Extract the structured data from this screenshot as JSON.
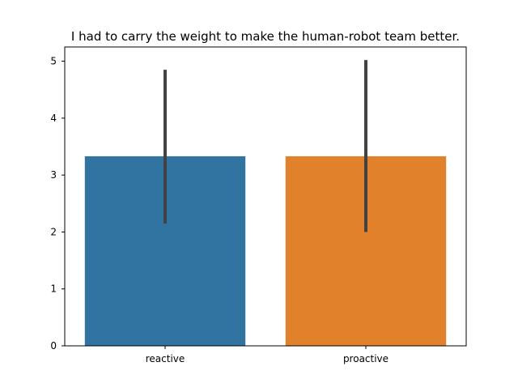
{
  "chart_data": {
    "type": "bar",
    "title": "I had to carry the weight to make the human-robot team better.",
    "xlabel": "",
    "ylabel": "",
    "categories": [
      "reactive",
      "proactive"
    ],
    "values": [
      3.33,
      3.33
    ],
    "error_bars": [
      {
        "low": 2.15,
        "high": 4.85
      },
      {
        "low": 2.0,
        "high": 5.02
      }
    ],
    "ylim": [
      0,
      5.25
    ],
    "yticks": [
      0,
      1,
      2,
      3,
      4,
      5
    ],
    "colors": [
      "#3274a1",
      "#e1812c"
    ],
    "errorbar_color": "#424242",
    "grid": false,
    "legend": "none"
  }
}
